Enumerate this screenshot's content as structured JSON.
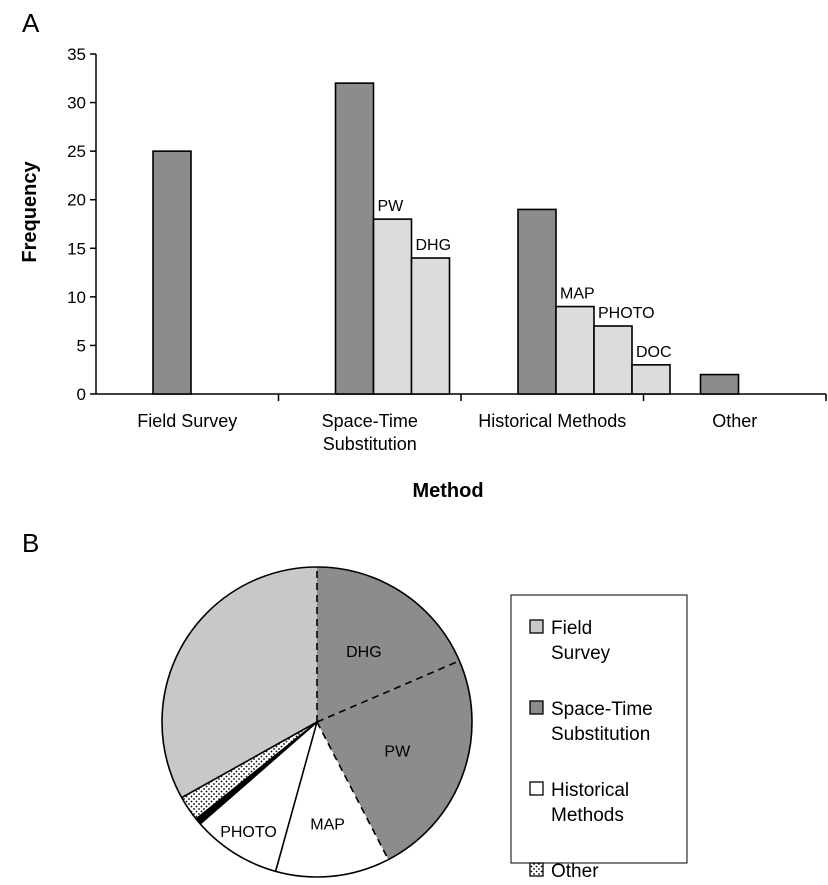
{
  "panel_labels": [
    "A",
    "B"
  ],
  "chart_data": [
    {
      "type": "bar",
      "xlabel": "Method",
      "ylabel": "Frequency",
      "ylim": [
        0,
        35
      ],
      "yticks": [
        0,
        5,
        10,
        15,
        20,
        25,
        30,
        35
      ],
      "grid": false,
      "categories": [
        {
          "lines": [
            "Field Survey"
          ],
          "bars": [
            {
              "value": 25,
              "label": "",
              "style": "primary"
            }
          ]
        },
        {
          "lines": [
            "Space-Time",
            "Substitution"
          ],
          "bars": [
            {
              "value": 32,
              "label": "",
              "style": "primary"
            },
            {
              "value": 18,
              "label": "PW",
              "style": "sub"
            },
            {
              "value": 14,
              "label": "DHG",
              "style": "sub"
            }
          ]
        },
        {
          "lines": [
            "Historical Methods"
          ],
          "bars": [
            {
              "value": 19,
              "label": "",
              "style": "primary"
            },
            {
              "value": 9,
              "label": "MAP",
              "style": "sub"
            },
            {
              "value": 7,
              "label": "PHOTO",
              "style": "sub"
            },
            {
              "value": 3,
              "label": "DOC",
              "style": "sub"
            }
          ]
        },
        {
          "lines": [
            "Other"
          ],
          "bars": [
            {
              "value": 2,
              "label": "",
              "style": "primary"
            }
          ]
        }
      ],
      "colors": {
        "primary": "#8c8c8c",
        "sub": "#dcdcdc"
      }
    },
    {
      "type": "pie",
      "start_angle_deg": 0,
      "slices": [
        {
          "label": "DHG",
          "value": 14,
          "group": "Space-Time Substitution",
          "fill": "#8c8c8c",
          "divider": "dashed"
        },
        {
          "label": "PW",
          "value": 18,
          "group": "Space-Time Substitution",
          "fill": "#8c8c8c",
          "divider": "dashed"
        },
        {
          "label": "MAP",
          "value": 9,
          "group": "Historical Methods",
          "fill": "#ffffff",
          "divider": "dashed"
        },
        {
          "label": "PHOTO",
          "value": 7,
          "group": "Historical Methods",
          "fill": "#ffffff",
          "divider": "solid"
        },
        {
          "label": "",
          "value": 0.5,
          "group": "Historical Methods",
          "fill": "#000000",
          "divider": "solid"
        },
        {
          "label": "",
          "value": 2,
          "group": "Other",
          "fill": "dotted",
          "divider": "solid"
        },
        {
          "label": "",
          "value": 25,
          "group": "Field Survey",
          "fill": "#c8c8c8",
          "divider": "solid"
        }
      ],
      "legend": {
        "placement": "right",
        "entries": [
          {
            "lines": [
              "Field",
              "Survey"
            ],
            "fill": "#c8c8c8"
          },
          {
            "lines": [
              "Space-Time",
              "Substitution"
            ],
            "fill": "#8c8c8c"
          },
          {
            "lines": [
              "Historical",
              "Methods"
            ],
            "fill": "#ffffff"
          },
          {
            "lines": [
              "Other"
            ],
            "fill": "dotted"
          }
        ]
      }
    }
  ]
}
